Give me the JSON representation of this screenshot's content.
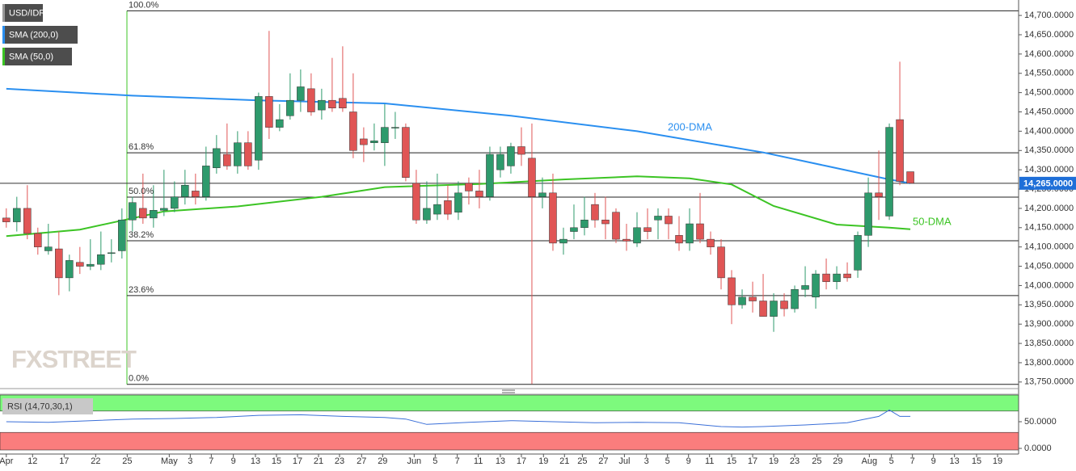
{
  "chart_data": {
    "type": "candlestick",
    "symbol": "USD/IDR",
    "watermark": "FXSTREET",
    "up_color": "#2e9a6c",
    "down_color": "#e05555",
    "candles": {
      "open": [
        14175,
        14165,
        14200,
        14135,
        14090,
        14095,
        14020,
        14060,
        14050,
        14055,
        14085,
        14090,
        14170,
        14200,
        14175,
        14195,
        14200,
        14230,
        14245,
        14230,
        14305,
        14340,
        14310,
        14370,
        14325,
        14490,
        14410,
        14440,
        14480,
        14510,
        14455,
        14480,
        14485,
        14450,
        14380,
        14370,
        14370,
        14410,
        14410,
        14265,
        14170,
        14185,
        14220,
        14190,
        14265,
        14245,
        14230,
        14300,
        14310,
        14360,
        14330,
        14230,
        14240,
        14110,
        14140,
        14150,
        14210,
        14170,
        14190,
        14120,
        14110,
        14150,
        14170,
        14180,
        14130,
        14110,
        14160,
        14120,
        14100,
        14020,
        13950,
        13970,
        13960,
        13920,
        13960,
        13940,
        13990,
        13970,
        14030,
        14010,
        14030,
        14040,
        14130,
        14240,
        14180,
        14430,
        14295
      ],
      "high": [
        14200,
        14230,
        14260,
        14150,
        14160,
        14140,
        14080,
        14100,
        14120,
        14140,
        14120,
        14200,
        14230,
        14290,
        14260,
        14300,
        14270,
        14300,
        14290,
        14360,
        14390,
        14420,
        14400,
        14400,
        14500,
        14660,
        14470,
        14550,
        14560,
        14550,
        14510,
        14590,
        14620,
        14550,
        14410,
        14420,
        14470,
        14450,
        14420,
        14300,
        14270,
        14290,
        14260,
        14270,
        14280,
        14300,
        14360,
        14360,
        14370,
        14410,
        14420,
        14280,
        14290,
        14150,
        14210,
        14230,
        14240,
        14230,
        14200,
        14160,
        14190,
        14200,
        14200,
        14200,
        14180,
        14200,
        14240,
        14140,
        14120,
        14040,
        13990,
        14010,
        14030,
        13980,
        13980,
        14000,
        14050,
        14040,
        14070,
        14050,
        14060,
        14140,
        14280,
        14350,
        14420,
        14580,
        14295
      ],
      "low": [
        14150,
        14140,
        14120,
        14080,
        14080,
        13975,
        13985,
        14030,
        14040,
        14040,
        14060,
        14070,
        14140,
        14160,
        14150,
        14180,
        14190,
        14210,
        14210,
        14220,
        14290,
        14300,
        14290,
        14300,
        14300,
        14380,
        14400,
        14430,
        14450,
        14440,
        14430,
        14450,
        14450,
        14330,
        14320,
        14350,
        14310,
        14380,
        14270,
        14160,
        14160,
        14170,
        14170,
        14170,
        14210,
        14200,
        14220,
        14280,
        14290,
        14310,
        13745,
        14200,
        14090,
        14080,
        14120,
        14130,
        14150,
        14120,
        14110,
        14090,
        14100,
        14120,
        14120,
        14120,
        14090,
        14090,
        14110,
        14080,
        13990,
        13900,
        13940,
        13930,
        13920,
        13880,
        13920,
        13930,
        13970,
        13940,
        13990,
        13990,
        14010,
        14020,
        14100,
        14170,
        14170,
        14260,
        14265
      ],
      "close": [
        14165,
        14200,
        14135,
        14100,
        14100,
        14020,
        14065,
        14050,
        14055,
        14080,
        14085,
        14170,
        14215,
        14175,
        14195,
        14200,
        14230,
        14260,
        14230,
        14310,
        14355,
        14310,
        14370,
        14310,
        14490,
        14410,
        14430,
        14480,
        14515,
        14450,
        14480,
        14460,
        14460,
        14350,
        14365,
        14375,
        14410,
        14410,
        14280,
        14170,
        14200,
        14210,
        14185,
        14240,
        14245,
        14230,
        14340,
        14340,
        14360,
        14340,
        14230,
        14240,
        14110,
        14120,
        14150,
        14170,
        14170,
        14160,
        14120,
        14115,
        14150,
        14140,
        14180,
        14160,
        14110,
        14160,
        14120,
        14100,
        14020,
        13950,
        13970,
        13960,
        13920,
        13960,
        13940,
        13990,
        14000,
        14030,
        14010,
        14030,
        14020,
        14130,
        14240,
        14230,
        14410,
        14270,
        14265
      ]
    },
    "series": [
      {
        "name": "SMA (200,0)",
        "annotation": "200-DMA",
        "color": "#2a8ff0",
        "x": [
          0,
          12,
          24,
          36,
          48,
          60,
          72,
          78,
          84,
          86
        ],
        "values": [
          14510,
          14492,
          14480,
          14472,
          14440,
          14400,
          14345,
          14310,
          14275,
          14265
        ]
      },
      {
        "name": "SMA (50,0)",
        "annotation": "50-DMA",
        "color": "#3cc424",
        "x": [
          0,
          7,
          15,
          22,
          30,
          36,
          45,
          53,
          60,
          65,
          69,
          73,
          79,
          84,
          86
        ],
        "values": [
          14128,
          14145,
          14192,
          14205,
          14230,
          14255,
          14263,
          14275,
          14283,
          14278,
          14262,
          14206,
          14158,
          14150,
          14146
        ]
      }
    ],
    "last_price": {
      "value": 14265,
      "label": "14,265.0000"
    },
    "fib_levels": [
      {
        "value": 14712,
        "label": "100.0%"
      },
      {
        "value": 14344,
        "label": "61.8%"
      },
      {
        "value": 14229,
        "label": "50.0%"
      },
      {
        "value": 14116,
        "label": "38.2%"
      },
      {
        "value": 13974,
        "label": "23.6%"
      },
      {
        "value": 13744,
        "label": "0.0%"
      }
    ],
    "xlim": [
      -0.6,
      96.3
    ],
    "ylim": [
      13735,
      14740
    ],
    "yticks": [
      {
        "value": 14700,
        "label": "14,700.0000"
      },
      {
        "value": 14650,
        "label": "14,650.0000"
      },
      {
        "value": 14600,
        "label": "14,600.0000"
      },
      {
        "value": 14550,
        "label": "14,550.0000"
      },
      {
        "value": 14500,
        "label": "14,500.0000"
      },
      {
        "value": 14450,
        "label": "14,450.0000"
      },
      {
        "value": 14400,
        "label": "14,400.0000"
      },
      {
        "value": 14350,
        "label": "14,350.0000"
      },
      {
        "value": 14300,
        "label": "14,300.0000"
      },
      {
        "value": 14250,
        "label": "14,250.0000"
      },
      {
        "value": 14200,
        "label": "14,200.0000"
      },
      {
        "value": 14150,
        "label": "14,150.0000"
      },
      {
        "value": 14100,
        "label": "14,100.0000"
      },
      {
        "value": 14050,
        "label": "14,050.0000"
      },
      {
        "value": 14000,
        "label": "14,000.0000"
      },
      {
        "value": 13950,
        "label": "13,950.0000"
      },
      {
        "value": 13900,
        "label": "13,900.0000"
      },
      {
        "value": 13850,
        "label": "13,850.0000"
      },
      {
        "value": 13800,
        "label": "13,800.0000"
      },
      {
        "value": 13750,
        "label": "13,750.0000"
      }
    ],
    "xticks": [
      {
        "value": 0,
        "label": "Apr"
      },
      {
        "value": 2.5,
        "label": "12"
      },
      {
        "value": 5.5,
        "label": "17"
      },
      {
        "value": 8.5,
        "label": "22"
      },
      {
        "value": 11.5,
        "label": "25"
      },
      {
        "value": 15.5,
        "label": "May"
      },
      {
        "value": 17.5,
        "label": "3"
      },
      {
        "value": 19.5,
        "label": "7"
      },
      {
        "value": 21.6,
        "label": "9"
      },
      {
        "value": 23.7,
        "label": "13"
      },
      {
        "value": 25.7,
        "label": "15"
      },
      {
        "value": 27.7,
        "label": "17"
      },
      {
        "value": 29.7,
        "label": "21"
      },
      {
        "value": 31.7,
        "label": "23"
      },
      {
        "value": 33.8,
        "label": "27"
      },
      {
        "value": 35.8,
        "label": "29"
      },
      {
        "value": 38.8,
        "label": "Jun"
      },
      {
        "value": 40.8,
        "label": "5"
      },
      {
        "value": 42.9,
        "label": "7"
      },
      {
        "value": 44.9,
        "label": "11"
      },
      {
        "value": 47,
        "label": "13"
      },
      {
        "value": 49,
        "label": "17"
      },
      {
        "value": 51.1,
        "label": "19"
      },
      {
        "value": 53.1,
        "label": "21"
      },
      {
        "value": 54.8,
        "label": "25"
      },
      {
        "value": 56.8,
        "label": "27"
      },
      {
        "value": 58.8,
        "label": "Jul"
      },
      {
        "value": 60.9,
        "label": "3"
      },
      {
        "value": 62.9,
        "label": "5"
      },
      {
        "value": 64.9,
        "label": "9"
      },
      {
        "value": 66.9,
        "label": "11"
      },
      {
        "value": 69,
        "label": "15"
      },
      {
        "value": 71,
        "label": "17"
      },
      {
        "value": 73,
        "label": "19"
      },
      {
        "value": 75,
        "label": "23"
      },
      {
        "value": 77.1,
        "label": "25"
      },
      {
        "value": 79.1,
        "label": "29"
      },
      {
        "value": 82.1,
        "label": "Aug"
      },
      {
        "value": 84.2,
        "label": "5"
      },
      {
        "value": 86.2,
        "label": "7"
      },
      {
        "value": 88.2,
        "label": "9"
      },
      {
        "value": 90.2,
        "label": "13"
      },
      {
        "value": 92.3,
        "label": "15"
      },
      {
        "value": 94.3,
        "label": "19"
      }
    ],
    "rsi": {
      "label": "RSI (14,70,30,1)",
      "color": "#3a6fd8",
      "overbought": 70,
      "oversold": 30,
      "overbought_color": "#7dfa7d",
      "oversold_color": "#fa7d7d",
      "ylim": [
        -3,
        100
      ],
      "yticks": [
        {
          "value": 50,
          "label": "50.0000"
        },
        {
          "value": 0,
          "label": "0.0000"
        }
      ],
      "x": [
        0,
        4,
        8,
        12,
        16,
        20,
        24,
        28,
        32,
        36,
        38,
        40,
        44,
        48,
        52,
        56,
        60,
        64,
        68,
        70,
        72,
        76,
        80,
        82,
        83,
        84,
        85,
        86
      ],
      "values": [
        50,
        49,
        52,
        55,
        56,
        58,
        62,
        63,
        60,
        58,
        55,
        45,
        49,
        52,
        50,
        48,
        49,
        48,
        41,
        40,
        41,
        44,
        48,
        56,
        60,
        72,
        60,
        60
      ]
    }
  }
}
